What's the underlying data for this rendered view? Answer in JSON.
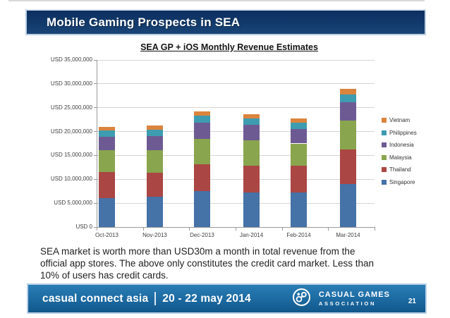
{
  "header": {
    "title": "Mobile Gaming Prospects in SEA"
  },
  "chart_data": {
    "type": "bar",
    "stacked": true,
    "title": "SEA GP + iOS Monthly Revenue Estimates",
    "categories": [
      "Oct-2013",
      "Nov-2013",
      "Dec-2013",
      "Jan-2014",
      "Feb-2014",
      "Mar-2014"
    ],
    "unit": "USD",
    "series": [
      {
        "name": "Singapore",
        "color": "#4572a7",
        "values": [
          6100000,
          6300000,
          7500000,
          7200000,
          7300000,
          9000000
        ]
      },
      {
        "name": "Thailand",
        "color": "#aa4643",
        "values": [
          5400000,
          5100000,
          5600000,
          5700000,
          5500000,
          7300000
        ]
      },
      {
        "name": "Malaysia",
        "color": "#89a54e",
        "values": [
          4600000,
          4700000,
          5300000,
          5200000,
          4700000,
          6000000
        ]
      },
      {
        "name": "Indonesia",
        "color": "#6e5a93",
        "values": [
          2800000,
          2900000,
          3400000,
          3300000,
          3100000,
          3900000
        ]
      },
      {
        "name": "Philippines",
        "color": "#3d9cb0",
        "values": [
          1400000,
          1400000,
          1500000,
          1400000,
          1300000,
          1600000
        ]
      },
      {
        "name": "Vietnam",
        "color": "#db843d",
        "values": [
          700000,
          800000,
          900000,
          800000,
          800000,
          1100000
        ]
      }
    ],
    "legend": [
      "Vietnam",
      "Philippines",
      "Indonesia",
      "Malaysia",
      "Thailand",
      "Singapore"
    ],
    "legend_position": "right",
    "grid": true,
    "y_axis": {
      "min": 0,
      "max": 35000000,
      "step": 5000000,
      "tick_labels": [
        "USD 0",
        "USD 5,000,000",
        "USD 10,000,000",
        "USD 15,000,000",
        "USD 20,000,000",
        "USD 25,000,000",
        "USD 30,000,000",
        "USD 35,000,000"
      ]
    }
  },
  "body": {
    "lines": [
      "SEA market is worth more than USD30m a month in total revenue from the",
      "official app stores. The above only constitutes the credit card market. Less than",
      "10% of users has credit cards."
    ]
  },
  "footer": {
    "event_name": "casual connect asia",
    "event_dates": "20 - 22 may 2014",
    "org_line1": "CASUAL GAMES",
    "org_line2": "ASSOCIATION",
    "logo": "casual-games-association-logo",
    "page_number": "21"
  }
}
